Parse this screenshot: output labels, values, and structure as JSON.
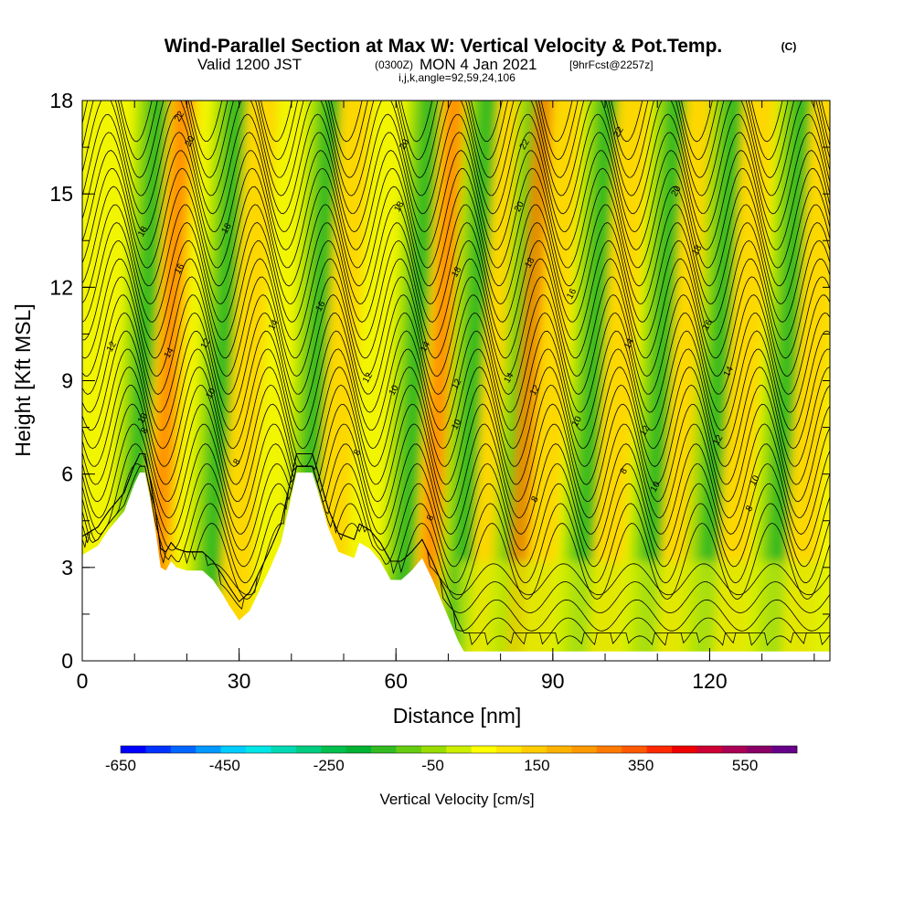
{
  "title": {
    "main": "Wind-Parallel Section at Max W: Vertical Velocity & Pot.Temp.",
    "copyright": "(C)",
    "valid_prefix": "Valid 1200 JST",
    "valid_utc": "(0300Z)",
    "valid_date": "MON 4 Jan 2021",
    "forecast": "[9hrFcst@2257z]",
    "indices": "i,j,k,angle=92,59,24,106"
  },
  "chart_data": {
    "type": "heatmap",
    "xlabel": "Distance [nm]",
    "ylabel": "Height [Kft MSL]",
    "xlim": [
      0,
      143
    ],
    "ylim": [
      0,
      18
    ],
    "x_ticks": [
      "0",
      "30",
      "60",
      "90",
      "120"
    ],
    "x_tick_values": [
      0,
      30,
      60,
      90,
      120
    ],
    "y_ticks": [
      "0",
      "3",
      "6",
      "9",
      "12",
      "15",
      "18"
    ],
    "y_tick_values": [
      0,
      3,
      6,
      9,
      12,
      15,
      18
    ],
    "x_minor_step": 10,
    "y_minor_step": 1.5,
    "fill_variable": "vertical velocity (cm/s)",
    "contour_variable": "potential temperature",
    "wave_crests_nm": [
      13,
      28,
      46,
      65,
      76,
      86,
      99,
      112,
      123,
      136
    ],
    "updraft_bands_nm": [
      18,
      70,
      87
    ],
    "terrain": [
      {
        "x": 0,
        "h": 3.4
      },
      {
        "x": 3,
        "h": 3.7
      },
      {
        "x": 5,
        "h": 4.2
      },
      {
        "x": 8,
        "h": 4.8
      },
      {
        "x": 10,
        "h": 5.7
      },
      {
        "x": 11,
        "h": 6.05
      },
      {
        "x": 12,
        "h": 6.05
      },
      {
        "x": 13,
        "h": 5.2
      },
      {
        "x": 14,
        "h": 4.2
      },
      {
        "x": 15,
        "h": 3.0
      },
      {
        "x": 16,
        "h": 2.9
      },
      {
        "x": 17,
        "h": 3.2
      },
      {
        "x": 18,
        "h": 3.0
      },
      {
        "x": 20,
        "h": 2.9
      },
      {
        "x": 23,
        "h": 2.9
      },
      {
        "x": 25,
        "h": 2.6
      },
      {
        "x": 27,
        "h": 2.1
      },
      {
        "x": 28,
        "h": 1.8
      },
      {
        "x": 30,
        "h": 1.3
      },
      {
        "x": 32,
        "h": 1.6
      },
      {
        "x": 34,
        "h": 2.3
      },
      {
        "x": 36,
        "h": 3.0
      },
      {
        "x": 38,
        "h": 3.8
      },
      {
        "x": 40,
        "h": 5.3
      },
      {
        "x": 41,
        "h": 6.05
      },
      {
        "x": 44,
        "h": 6.05
      },
      {
        "x": 45,
        "h": 5.5
      },
      {
        "x": 47,
        "h": 4.3
      },
      {
        "x": 49,
        "h": 3.5
      },
      {
        "x": 52,
        "h": 3.3
      },
      {
        "x": 53,
        "h": 3.8
      },
      {
        "x": 55,
        "h": 3.6
      },
      {
        "x": 57,
        "h": 3.2
      },
      {
        "x": 59,
        "h": 2.6
      },
      {
        "x": 61,
        "h": 2.6
      },
      {
        "x": 63,
        "h": 2.9
      },
      {
        "x": 65,
        "h": 3.3
      },
      {
        "x": 67,
        "h": 2.6
      },
      {
        "x": 69,
        "h": 1.8
      },
      {
        "x": 71,
        "h": 1.0
      },
      {
        "x": 72,
        "h": 0.6
      },
      {
        "x": 73,
        "h": 0.3
      },
      {
        "x": 75,
        "h": 0.3
      },
      {
        "x": 143,
        "h": 0.3
      }
    ],
    "contour_labels": [
      {
        "v": "22",
        "x": 18.5,
        "y": 17.5
      },
      {
        "v": "20",
        "x": 20.5,
        "y": 16.7
      },
      {
        "v": "18",
        "x": 11.5,
        "y": 13.8
      },
      {
        "v": "18",
        "x": 27.5,
        "y": 13.9
      },
      {
        "v": "16",
        "x": 18.5,
        "y": 12.6
      },
      {
        "v": "14",
        "x": 36.5,
        "y": 10.8
      },
      {
        "v": "16",
        "x": 45.5,
        "y": 11.4
      },
      {
        "v": "12",
        "x": 5.5,
        "y": 10.1
      },
      {
        "v": "14",
        "x": 16.5,
        "y": 9.9
      },
      {
        "v": "12",
        "x": 23.5,
        "y": 10.2
      },
      {
        "v": "10",
        "x": 24.5,
        "y": 8.6
      },
      {
        "v": "10",
        "x": 11.5,
        "y": 7.8
      },
      {
        "v": "8",
        "x": 11.8,
        "y": 7.4
      },
      {
        "v": "8",
        "x": 29.5,
        "y": 6.4
      },
      {
        "v": "20",
        "x": 61.5,
        "y": 16.6
      },
      {
        "v": "18",
        "x": 60.5,
        "y": 14.6
      },
      {
        "v": "14",
        "x": 65.5,
        "y": 10.1
      },
      {
        "v": "12",
        "x": 54.5,
        "y": 9.1
      },
      {
        "v": "10",
        "x": 59.5,
        "y": 8.7
      },
      {
        "v": "8",
        "x": 52.5,
        "y": 6.7
      },
      {
        "v": "18",
        "x": 71.5,
        "y": 12.5
      },
      {
        "v": "12",
        "x": 71.5,
        "y": 8.9
      },
      {
        "v": "10",
        "x": 71.5,
        "y": 7.6
      },
      {
        "v": "8",
        "x": 66.5,
        "y": 4.6
      },
      {
        "v": "22",
        "x": 84.5,
        "y": 16.6
      },
      {
        "v": "20",
        "x": 83.5,
        "y": 14.6
      },
      {
        "v": "18",
        "x": 85.5,
        "y": 12.8
      },
      {
        "v": "14",
        "x": 81.5,
        "y": 9.1
      },
      {
        "v": "12",
        "x": 86.5,
        "y": 8.7
      },
      {
        "v": "8",
        "x": 86.5,
        "y": 5.2
      },
      {
        "v": "22",
        "x": 102.5,
        "y": 17.0
      },
      {
        "v": "20",
        "x": 113.5,
        "y": 15.1
      },
      {
        "v": "16",
        "x": 93.5,
        "y": 11.8
      },
      {
        "v": "10",
        "x": 94.5,
        "y": 7.7
      },
      {
        "v": "14",
        "x": 104.5,
        "y": 10.2
      },
      {
        "v": "12",
        "x": 107.5,
        "y": 7.4
      },
      {
        "v": "8",
        "x": 103.5,
        "y": 6.1
      },
      {
        "v": "10",
        "x": 109.5,
        "y": 5.6
      },
      {
        "v": "18",
        "x": 117.5,
        "y": 13.2
      },
      {
        "v": "16",
        "x": 119.5,
        "y": 10.8
      },
      {
        "v": "14",
        "x": 123.5,
        "y": 9.3
      },
      {
        "v": "12",
        "x": 121.5,
        "y": 7.1
      },
      {
        "v": "10",
        "x": 128.5,
        "y": 5.8
      },
      {
        "v": "8",
        "x": 127.5,
        "y": 4.9
      }
    ],
    "colorbar": {
      "title": "Vertical Velocity [cm/s]",
      "labels": [
        "-650",
        "-450",
        "-250",
        "-50",
        "150",
        "350",
        "550"
      ],
      "label_values": [
        -650,
        -450,
        -250,
        -50,
        150,
        350,
        550
      ],
      "vmin": -650,
      "vmax": 650,
      "colors": [
        "#0000ff",
        "#0033ff",
        "#0066ff",
        "#0099ff",
        "#00ccff",
        "#00e6e6",
        "#00d9b3",
        "#00cc80",
        "#00bf4d",
        "#00b233",
        "#33bb22",
        "#66cc11",
        "#99dd00",
        "#ccee00",
        "#ffff00",
        "#ffe600",
        "#ffcc00",
        "#ffb300",
        "#ff9900",
        "#ff7a00",
        "#ff5a00",
        "#ff2a00",
        "#ee0000",
        "#cc0033",
        "#aa0055",
        "#880066",
        "#660088"
      ]
    }
  }
}
